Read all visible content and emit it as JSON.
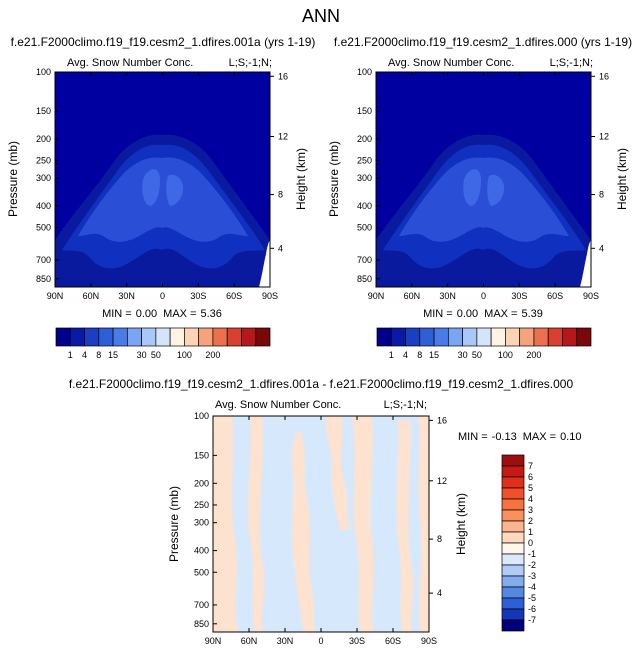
{
  "page_title": "ANN",
  "colors": {
    "frame": "#000000",
    "panel_bg": "#0000a0",
    "contour_levels": [
      "#0a1a9e",
      "#1030bf",
      "#2a4fd6",
      "#3f68e6"
    ],
    "white": "#ffffff",
    "diff_blue": "#d6e8fb",
    "diff_peach": "#fde3cf"
  },
  "chart_data": [
    {
      "type": "heatmap",
      "title": "f.e21.F2000climo.f19_f19.cesm2_1.dfires.001a (yrs 1-19)",
      "subtitle_left": "Avg. Snow Number Conc.",
      "subtitle_right": "L;S;-1;N;",
      "ylabel_left": "Pressure (mb)",
      "ylabel_right": "Height (km)",
      "x_ticks": [
        "90N",
        "60N",
        "30N",
        "0",
        "30S",
        "60S",
        "90S"
      ],
      "y_ticks": [
        "100",
        "150",
        "200",
        "250",
        "300",
        "400",
        "500",
        "700",
        "850"
      ],
      "y_ticks_right": [
        "16",
        "12",
        "8",
        "4"
      ],
      "stats": {
        "min_label": "MIN =",
        "min": "0.00",
        "max_label": "MAX =",
        "max": "5.36"
      },
      "colorbar": {
        "labels": [
          "1",
          "4",
          "8",
          "15",
          "30",
          "50",
          "100",
          "200"
        ],
        "colors": [
          "#00008b",
          "#0a1aa8",
          "#1a3fc0",
          "#2f5fd6",
          "#4a7ce8",
          "#7aa5f2",
          "#a9c7f7",
          "#d4e4fb",
          "#fff4e4",
          "#fcd3b4",
          "#f6a27d",
          "#ec6f4f",
          "#d9402f",
          "#b4181a",
          "#7a0808"
        ]
      }
    },
    {
      "type": "heatmap",
      "title": "f.e21.F2000climo.f19_f19.cesm2_1.dfires.000 (yrs 1-19)",
      "subtitle_left": "Avg. Snow Number Conc.",
      "subtitle_right": "L;S;-1;N;",
      "ylabel_left": "Pressure (mb)",
      "ylabel_right": "Height (km)",
      "x_ticks": [
        "90N",
        "60N",
        "30N",
        "0",
        "30S",
        "60S",
        "90S"
      ],
      "y_ticks": [
        "100",
        "150",
        "200",
        "250",
        "300",
        "400",
        "500",
        "700",
        "850"
      ],
      "y_ticks_right": [
        "16",
        "12",
        "8",
        "4"
      ],
      "stats": {
        "min_label": "MIN =",
        "min": "0.00",
        "max_label": "MAX =",
        "max": "5.39"
      },
      "colorbar": {
        "labels": [
          "1",
          "4",
          "8",
          "15",
          "30",
          "50",
          "100",
          "200"
        ],
        "colors": [
          "#00008b",
          "#0a1aa8",
          "#1a3fc0",
          "#2f5fd6",
          "#4a7ce8",
          "#7aa5f2",
          "#a9c7f7",
          "#d4e4fb",
          "#fff4e4",
          "#fcd3b4",
          "#f6a27d",
          "#ec6f4f",
          "#d9402f",
          "#b4181a",
          "#7a0808"
        ]
      }
    },
    {
      "type": "heatmap",
      "title": "f.e21.F2000climo.f19_f19.cesm2_1.dfires.001a - f.e21.F2000climo.f19_f19.cesm2_1.dfires.000",
      "subtitle_left": "Avg. Snow Number Conc.",
      "subtitle_right": "L;S;-1;N;",
      "ylabel_left": "Pressure (mb)",
      "ylabel_right": "Height (km)",
      "x_ticks": [
        "90N",
        "60N",
        "30N",
        "0",
        "30S",
        "60S",
        "90S"
      ],
      "y_ticks": [
        "100",
        "150",
        "200",
        "250",
        "300",
        "400",
        "500",
        "700",
        "850"
      ],
      "y_ticks_right": [
        "16",
        "12",
        "8",
        "4"
      ],
      "stats": {
        "min_label": "MIN =",
        "min": "-0.13",
        "max_label": "MAX =",
        "max": "0.10"
      },
      "colorbar": {
        "labels": [
          "7",
          "6",
          "5",
          "4",
          "3",
          "2",
          "1",
          "0",
          "-1",
          "-2",
          "-3",
          "-4",
          "-5",
          "-6",
          "-7"
        ],
        "colors": [
          "#9b0f0f",
          "#c41a12",
          "#e0301a",
          "#f0502a",
          "#f67040",
          "#f9915e",
          "#fbb58e",
          "#fdd9bf",
          "#fff6ec",
          "#dce9fb",
          "#b0ccf6",
          "#83abee",
          "#5587e4",
          "#2c60d6",
          "#1436b8",
          "#00007a"
        ]
      }
    }
  ]
}
